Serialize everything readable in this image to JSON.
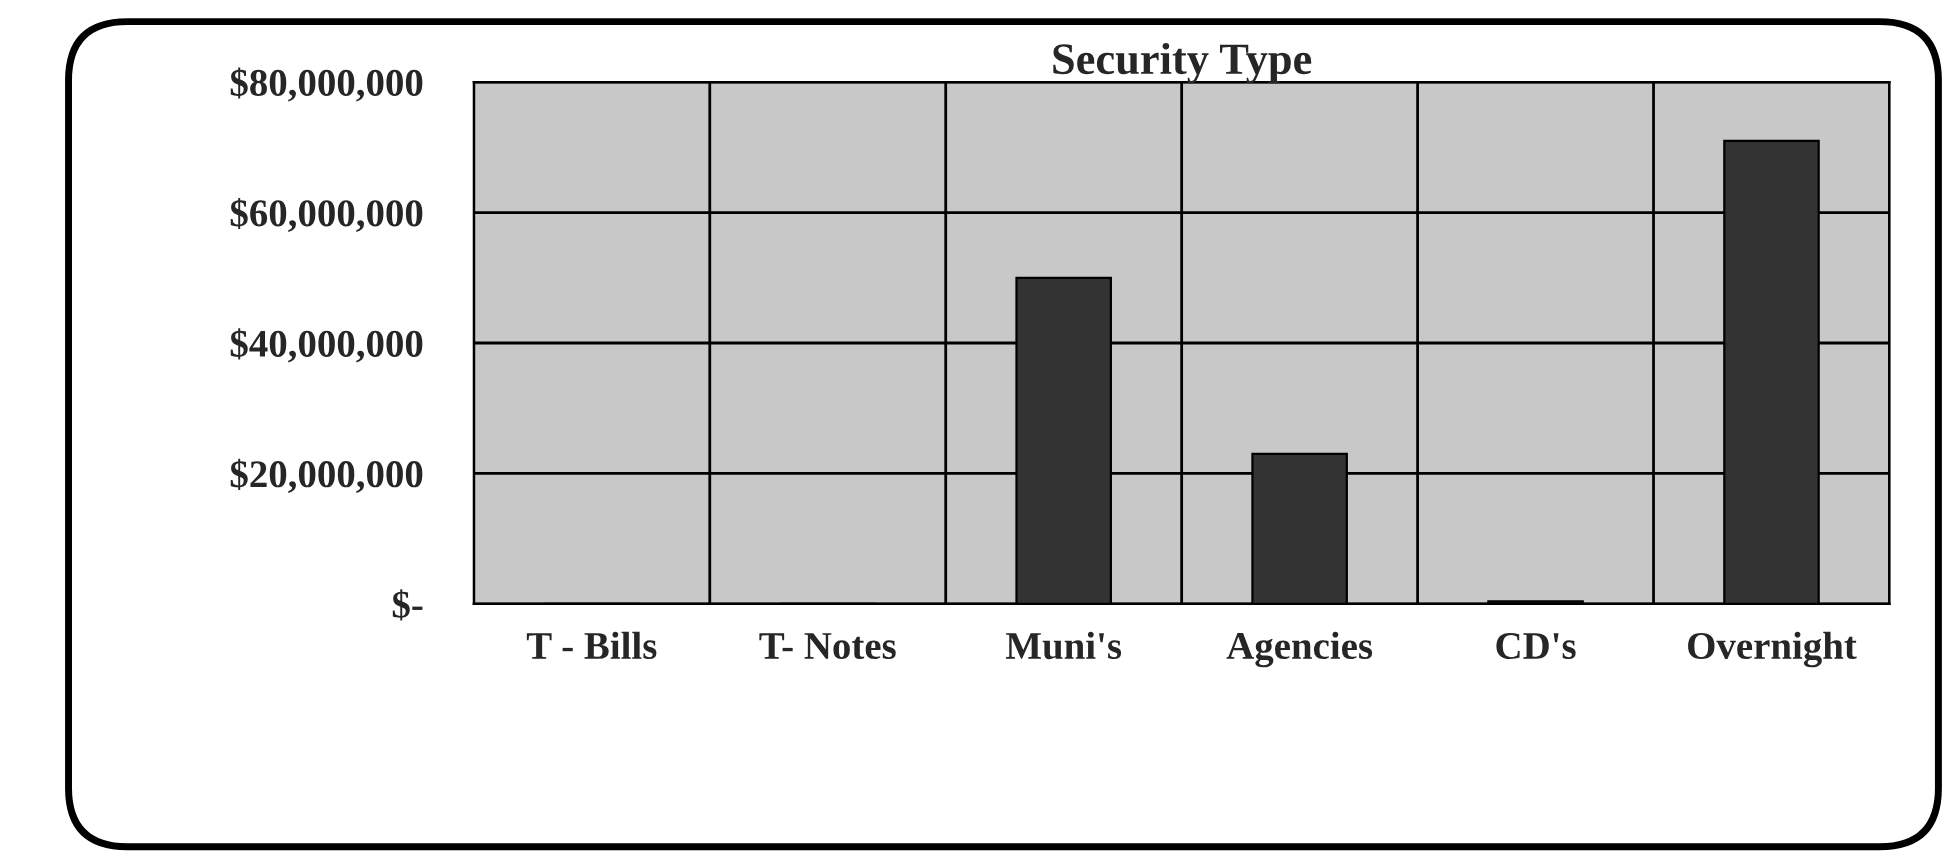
{
  "chart_data": {
    "type": "bar",
    "title": "Security Type",
    "categories": [
      "T - Bills",
      "T- Notes",
      "Muni's",
      "Agencies",
      "CD's",
      "Overnight"
    ],
    "values": [
      0,
      0,
      50000000,
      23000000,
      400000,
      71000000
    ],
    "color": "#333333",
    "ylim": [
      0,
      80000000
    ],
    "yticks": [
      {
        "value": 0,
        "label": "$-"
      },
      {
        "value": 20000000,
        "label": "$20,000,000"
      },
      {
        "value": 40000000,
        "label": "$40,000,000"
      },
      {
        "value": 60000000,
        "label": "$60,000,000"
      },
      {
        "value": 80000000,
        "label": "$80,000,000"
      }
    ],
    "grid": true
  }
}
